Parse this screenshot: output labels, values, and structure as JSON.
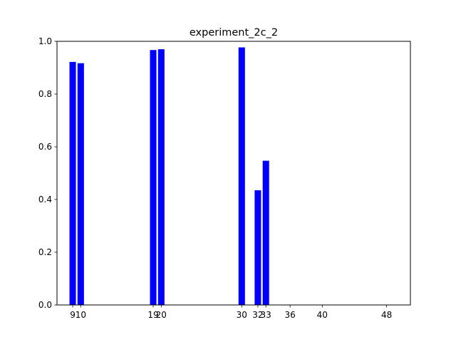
{
  "chart_data": {
    "type": "bar",
    "title": "experiment_2c_2",
    "xlabel": "",
    "ylabel": "",
    "x": [
      9,
      10,
      19,
      20,
      30,
      32,
      33,
      36,
      40,
      48
    ],
    "values": [
      0.922,
      0.917,
      0.967,
      0.97,
      0.977,
      0.435,
      0.547,
      0,
      0,
      0
    ],
    "xticks": [
      "9",
      "10",
      "19",
      "20",
      "30",
      "32",
      "33",
      "36",
      "40",
      "48"
    ],
    "yticks": [
      "0.0",
      "0.2",
      "0.4",
      "0.6",
      "0.8",
      "1.0"
    ],
    "ytick_values": [
      0,
      0.2,
      0.4,
      0.6,
      0.8,
      1.0
    ],
    "xlim": [
      7.05,
      50.95
    ],
    "ylim": [
      0,
      1.0
    ],
    "bar_width": 0.8,
    "bar_color": "#0000ff",
    "grid": false
  }
}
